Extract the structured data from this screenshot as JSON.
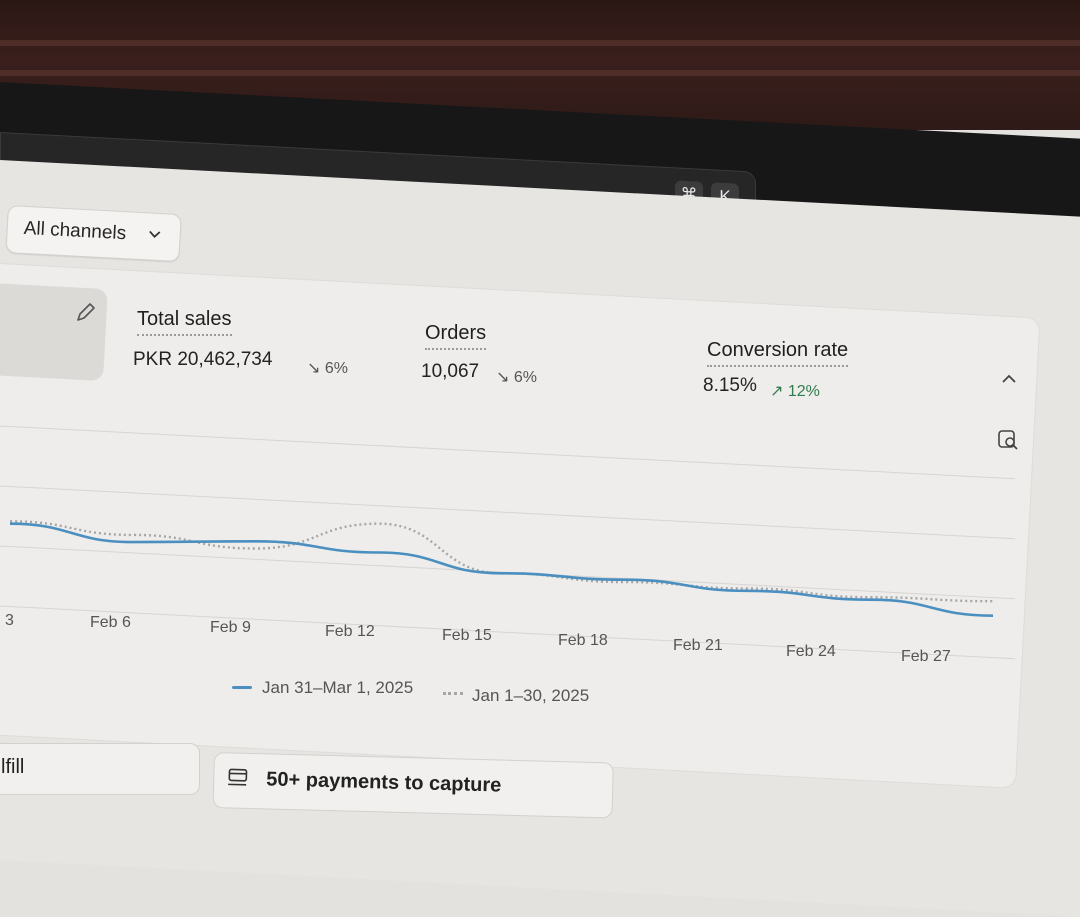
{
  "search": {
    "shortcut_cmd": "⌘",
    "shortcut_key": "K"
  },
  "filter": {
    "channels_label": "All channels"
  },
  "metrics": [
    {
      "label": "Total sales",
      "value": "PKR 20,462,734",
      "change": "6%",
      "direction": "down"
    },
    {
      "label": "Orders",
      "value": "10,067",
      "change": "6%",
      "direction": "down"
    },
    {
      "label": "Conversion rate",
      "value": "8.15%",
      "change": "12%",
      "direction": "up"
    }
  ],
  "chart_data": {
    "type": "line",
    "x": [
      "3",
      "Feb 6",
      "Feb 9",
      "Feb 12",
      "Feb 15",
      "Feb 18",
      "Feb 21",
      "Feb 24",
      "Feb 27"
    ],
    "series": [
      {
        "name": "Jan 31–Mar 1, 2025",
        "style": "solid",
        "color": "#4a8fc0",
        "values": [
          0.62,
          0.57,
          0.6,
          0.58,
          0.52,
          0.52,
          0.5,
          0.49,
          0.45
        ]
      },
      {
        "name": "Jan 1–30, 2025",
        "style": "dotted",
        "color": "#a6a6a6",
        "values": [
          0.63,
          0.6,
          0.57,
          0.7,
          0.52,
          0.51,
          0.51,
          0.5,
          0.51
        ]
      }
    ],
    "grid": true,
    "legend": "bottom"
  },
  "legend": {
    "current": "Jan 31–Mar 1, 2025",
    "previous": "Jan 1–30, 2025"
  },
  "bottom": {
    "fulfill_label": "lfill",
    "payments_label": "50+ payments to capture"
  },
  "colors": {
    "accent": "#4a8fc0",
    "positive": "#2e7d4b"
  },
  "icons": [
    "pencil-icon",
    "chevron-down-icon",
    "chevron-up-icon",
    "search-chart-icon",
    "payments-icon"
  ]
}
